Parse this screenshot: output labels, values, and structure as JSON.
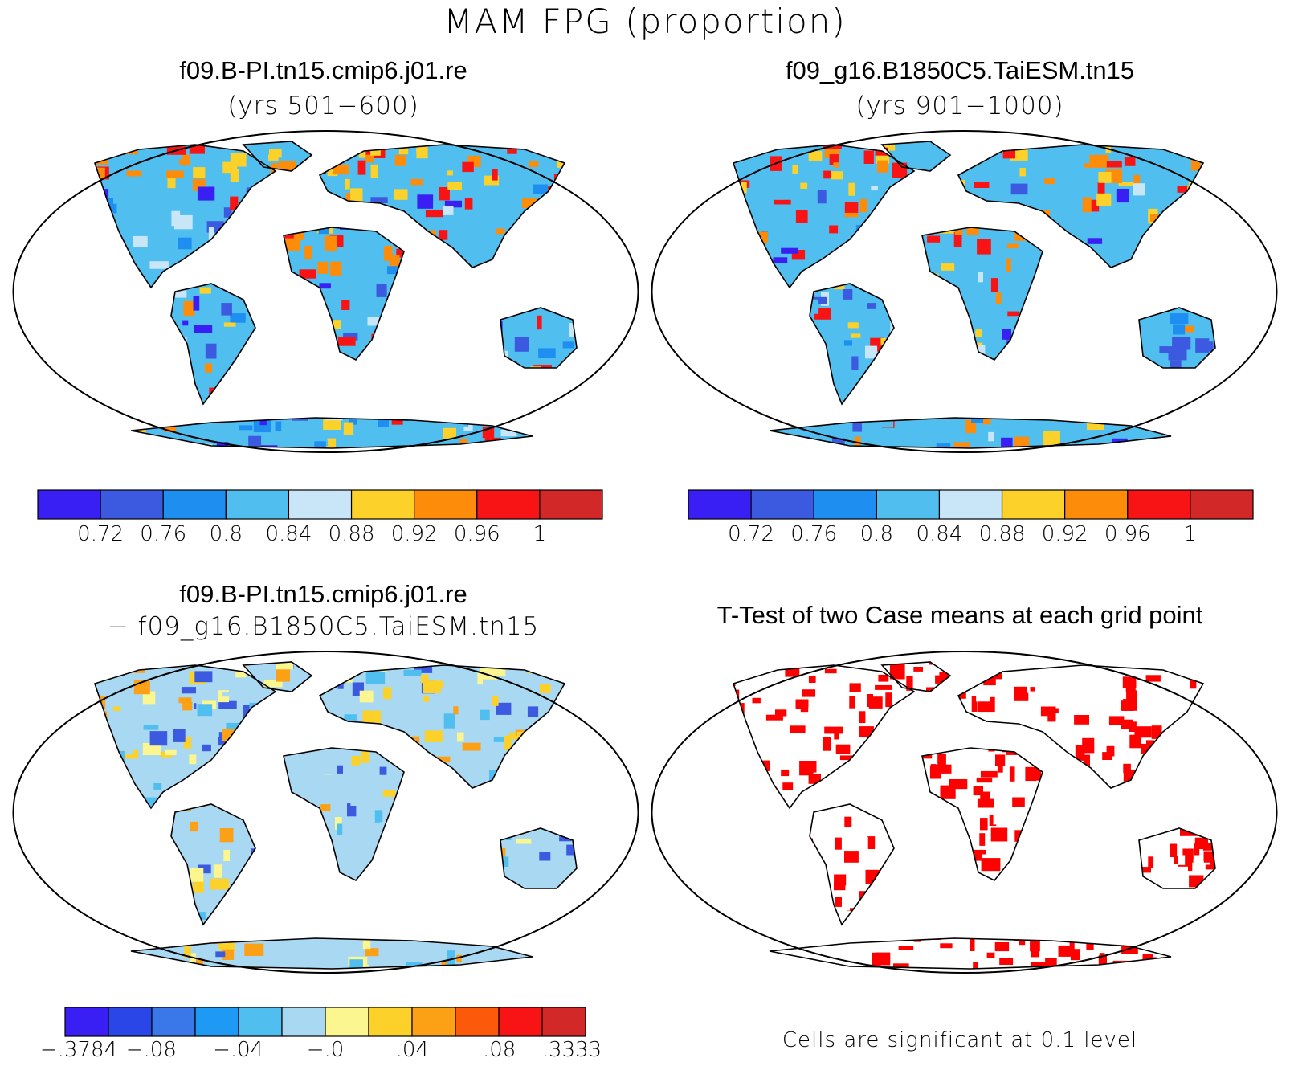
{
  "figure": {
    "title": "MAM FPG (proportion)"
  },
  "panels": {
    "case1": {
      "title": "f09.B-PI.tn15.cmip6.j01.re",
      "subtitle": "(yrs 501−600)"
    },
    "case2": {
      "title": "f09_g16.B1850C5.TaiESM.tn15",
      "subtitle": "(yrs 901−1000)"
    },
    "diff": {
      "title": "f09.B-PI.tn15.cmip6.j01.re",
      "subtitle": "− f09_g16.B1850C5.TaiESM.tn15"
    },
    "ttest": {
      "title": "T-Test of two Case means at each grid point",
      "note": "Cells are significant at 0.1 level"
    }
  },
  "colorbars": {
    "case": {
      "colors": [
        "#3a1ff5",
        "#3c5ae0",
        "#1e8ff0",
        "#50bff0",
        "#c8e6f8",
        "#fcd22a",
        "#fc8c0a",
        "#f81414",
        "#d22828"
      ],
      "ticks": [
        "0.72",
        "0.76",
        "0.8",
        "0.84",
        "0.88",
        "0.92",
        "0.96",
        "1"
      ]
    },
    "diff": {
      "colors": [
        "#3a1ff5",
        "#2a46e6",
        "#3a78ea",
        "#1e9af5",
        "#50bff0",
        "#a8d8f2",
        "#fcf690",
        "#fcd22a",
        "#fca016",
        "#fc5a0a",
        "#f81414",
        "#d22828"
      ],
      "ticks": [
        "−.3784",
        "−.08",
        "−.04",
        "−.0",
        ".04",
        ".08",
        ".3333"
      ]
    }
  },
  "map_colors": {
    "continent_case": "#50bff0",
    "continent_diff": "#a8d8f2",
    "significant": "#ff0000",
    "outline": "#000000"
  }
}
